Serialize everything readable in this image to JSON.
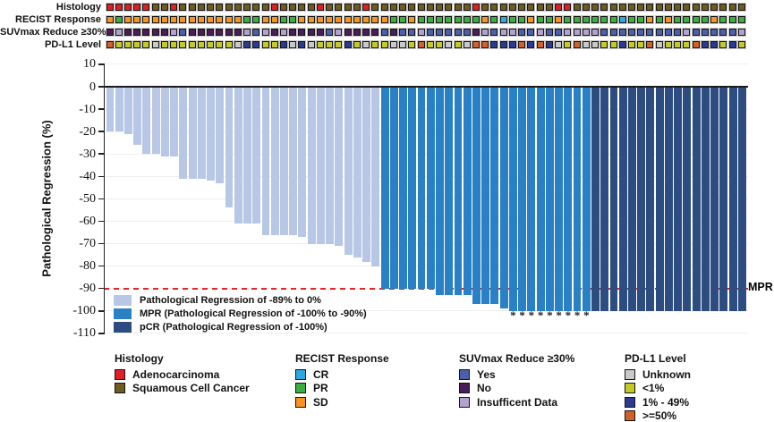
{
  "annotations": {
    "rows": [
      {
        "label": "Histology",
        "key": "histology"
      },
      {
        "label": "RECIST Response",
        "key": "recist"
      },
      {
        "label": "SUVmax Reduce ≥30%",
        "key": "suvmax"
      },
      {
        "label": "PD-L1 Level",
        "key": "pdl1"
      }
    ],
    "code_map": {
      "A": {
        "label": "Adenocarcinoma",
        "color": "#e01f25"
      },
      "S": {
        "label": "Squamous Cell Cancer",
        "color": "#6f5b20"
      },
      "C": {
        "label": "CR",
        "color": "#29abe2"
      },
      "P": {
        "label": "PR",
        "color": "#3aaf3f"
      },
      "O": {
        "label": "SD",
        "color": "#f7941d"
      },
      "Y": {
        "label": "Yes",
        "color": "#4c5fa8"
      },
      "N": {
        "label": "No",
        "color": "#491d55"
      },
      "I": {
        "label": "Insufficent Data",
        "color": "#b3a2cf"
      },
      "U": {
        "label": "Unknown",
        "color": "#c9c9c9"
      },
      "L": {
        "label": "<1%",
        "color": "#c4ca24"
      },
      "M": {
        "label": "1% - 49%",
        "color": "#2c3b92"
      },
      "H": {
        "label": ">=50%",
        "color": "#d06128"
      }
    },
    "histology": [
      "A",
      "A",
      "A",
      "A",
      "A",
      "S",
      "S",
      "A",
      "S",
      "S",
      "S",
      "S",
      "S",
      "S",
      "S",
      "S",
      "S",
      "S",
      "A",
      "S",
      "S",
      "S",
      "S",
      "A",
      "S",
      "S",
      "S",
      "S",
      "A",
      "S",
      "S",
      "S",
      "S",
      "S",
      "S",
      "S",
      "S",
      "S",
      "S",
      "S",
      "A",
      "S",
      "S",
      "S",
      "S",
      "S",
      "S",
      "S",
      "S",
      "A",
      "A",
      "S",
      "S",
      "S",
      "S",
      "S",
      "S",
      "S",
      "S",
      "S",
      "S",
      "S",
      "S",
      "S",
      "S",
      "S",
      "S",
      "S",
      "S",
      "S"
    ],
    "recist": [
      "O",
      "P",
      "O",
      "O",
      "O",
      "O",
      "O",
      "O",
      "O",
      "O",
      "O",
      "O",
      "O",
      "O",
      "O",
      "P",
      "P",
      "O",
      "O",
      "P",
      "P",
      "O",
      "O",
      "O",
      "O",
      "O",
      "O",
      "O",
      "O",
      "O",
      "O",
      "P",
      "P",
      "O",
      "P",
      "P",
      "P",
      "P",
      "P",
      "P",
      "P",
      "O",
      "P",
      "C",
      "P",
      "P",
      "O",
      "P",
      "P",
      "O",
      "P",
      "P",
      "P",
      "P",
      "P",
      "P",
      "C",
      "P",
      "P",
      "O",
      "P",
      "O",
      "P",
      "P",
      "P",
      "P",
      "O",
      "P",
      "P",
      "P"
    ],
    "suvmax": [
      "N",
      "I",
      "N",
      "N",
      "N",
      "N",
      "N",
      "I",
      "Y",
      "N",
      "N",
      "N",
      "N",
      "N",
      "N",
      "I",
      "Y",
      "I",
      "N",
      "I",
      "N",
      "N",
      "N",
      "N",
      "Y",
      "I",
      "N",
      "N",
      "N",
      "N",
      "Y",
      "N",
      "Y",
      "Y",
      "I",
      "Y",
      "Y",
      "Y",
      "Y",
      "Y",
      "N",
      "I",
      "Y",
      "I",
      "I",
      "Y",
      "Y",
      "I",
      "Y",
      "Y",
      "I",
      "I",
      "I",
      "I",
      "Y",
      "Y",
      "Y",
      "Y",
      "Y",
      "Y",
      "Y",
      "Y",
      "Y",
      "I",
      "Y",
      "Y",
      "Y",
      "Y",
      "Y",
      "I"
    ],
    "pdl1": [
      "H",
      "L",
      "L",
      "L",
      "L",
      "U",
      "L",
      "L",
      "L",
      "L",
      "L",
      "L",
      "L",
      "L",
      "U",
      "M",
      "M",
      "L",
      "L",
      "M",
      "U",
      "M",
      "U",
      "L",
      "L",
      "L",
      "M",
      "L",
      "U",
      "L",
      "L",
      "U",
      "U",
      "L",
      "H",
      "L",
      "L",
      "U",
      "L",
      "U",
      "H",
      "H",
      "M",
      "M",
      "M",
      "H",
      "M",
      "H",
      "M",
      "U",
      "L",
      "H",
      "U",
      "U",
      "L",
      "L",
      "M",
      "L",
      "L",
      "H",
      "U",
      "L",
      "L",
      "L",
      "H",
      "M",
      "M",
      "L",
      "M",
      "L"
    ]
  },
  "chart_data": {
    "type": "bar",
    "subtype": "waterfall",
    "title": "",
    "ylabel": "Pathological Regression (%)",
    "ylim": [
      -110,
      10
    ],
    "yticks": [
      10,
      0,
      -10,
      -20,
      -30,
      -40,
      -50,
      -60,
      -70,
      -80,
      -90,
      -100,
      -110
    ],
    "grid": true,
    "values": [
      -20,
      -20,
      -21,
      -26,
      -30,
      -30,
      -31,
      -31,
      -41,
      -41,
      -41,
      -42,
      -43,
      -54,
      -61,
      -61,
      -61,
      -66,
      -66,
      -66,
      -66,
      -67,
      -70,
      -70,
      -70,
      -71,
      -75,
      -76,
      -78,
      -80,
      -90,
      -90,
      -90,
      -90,
      -90,
      -90,
      -93,
      -93,
      -93,
      -93,
      -97,
      -97,
      -97,
      -99,
      -100,
      -100,
      -100,
      -100,
      -100,
      -100,
      -100,
      -100,
      -100,
      -100,
      -100,
      -100,
      -100,
      -100,
      -100,
      -100,
      -100,
      -100,
      -100,
      -100,
      -100,
      -100,
      -100,
      -100,
      -100,
      -100
    ],
    "group_counts": [
      {
        "group": "light",
        "count": 30
      },
      {
        "group": "mpr",
        "count": 23
      },
      {
        "group": "pcr",
        "count": 17
      }
    ],
    "group_colors": {
      "light": "#b7c7e5",
      "mpr": "#2980c4",
      "pcr": "#2d4d80"
    },
    "mpr_threshold": -90,
    "mpr_threshold_color": "#e62425",
    "mpr_line_label": "MPR",
    "asterisk_bar_indices": [
      44,
      45,
      46,
      47,
      48,
      49,
      50,
      51,
      52
    ],
    "asterisk_symbol": "*",
    "legend": [
      {
        "swatch": "light",
        "label": "Pathological Regression of -89% to 0%"
      },
      {
        "swatch": "mpr",
        "label": "MPR (Pathological Regression of -100% to -90%)"
      },
      {
        "swatch": "pcr",
        "label": "pCR (Pathological Regression of -100%)"
      }
    ]
  },
  "legends_bottom": [
    {
      "title": "Histology",
      "items": [
        {
          "color": "#e01f25",
          "label": "Adenocarcinoma"
        },
        {
          "color": "#6f5b20",
          "label": "Squamous Cell Cancer"
        }
      ]
    },
    {
      "title": "RECIST Response",
      "items": [
        {
          "color": "#29abe2",
          "label": "CR"
        },
        {
          "color": "#3aaf3f",
          "label": "PR"
        },
        {
          "color": "#f7941d",
          "label": "SD"
        }
      ]
    },
    {
      "title": "SUVmax Reduce ≥30%",
      "items": [
        {
          "color": "#4c5fa8",
          "label": "Yes"
        },
        {
          "color": "#491d55",
          "label": "No"
        },
        {
          "color": "#b3a2cf",
          "label": "Insufficent Data"
        }
      ]
    },
    {
      "title": "PD-L1 Level",
      "items": [
        {
          "color": "#c9c9c9",
          "label": "Unknown"
        },
        {
          "color": "#c4ca24",
          "label": "<1%"
        },
        {
          "color": "#2c3b92",
          "label": "1% - 49%"
        },
        {
          "color": "#d06128",
          "label": ">=50%"
        }
      ]
    }
  ]
}
